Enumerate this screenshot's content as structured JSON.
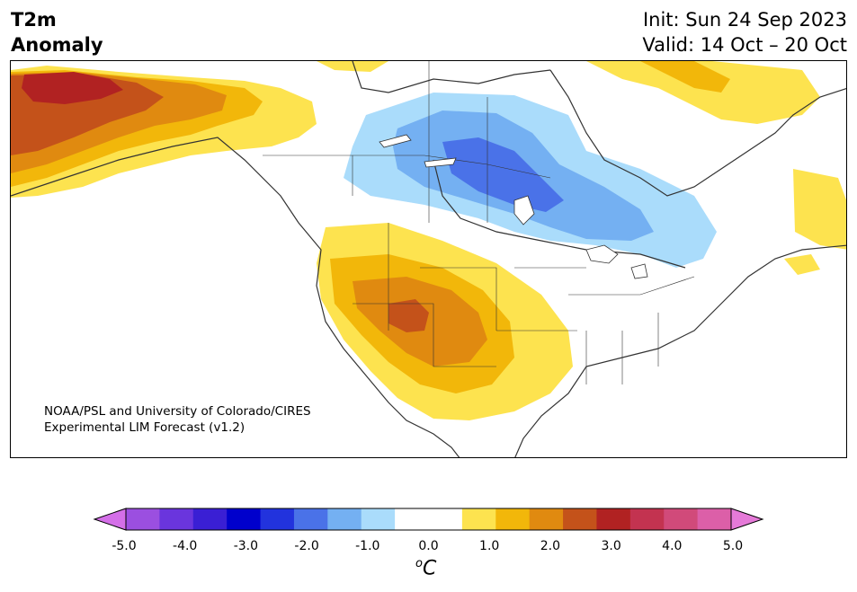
{
  "title": {
    "variable": "T2m",
    "type": "Anomaly",
    "init": "Init: Sun 24 Sep 2023",
    "valid": "Valid: 14 Oct – 20 Oct"
  },
  "credit": {
    "line1": "NOAA/PSL and University of Colorado/CIRES",
    "line2": "Experimental LIM Forecast (v1.2)"
  },
  "colorbar": {
    "unit_super": "o",
    "unit": "C",
    "ticks": [
      "-5.0",
      "-4.0",
      "-3.0",
      "-2.0",
      "-1.0",
      "0.0",
      "1.0",
      "2.0",
      "3.0",
      "4.0",
      "5.0"
    ],
    "bins": [
      "#d46fe8",
      "#9b4fe0",
      "#6a35dd",
      "#3a1fd4",
      "#0000cc",
      "#2233dd",
      "#4a72e8",
      "#74b0f2",
      "#aadcfb",
      "#ffffff",
      "#ffffff",
      "#fde34f",
      "#f2b70a",
      "#e08a10",
      "#c4521a",
      "#b12222",
      "#c33350",
      "#d14a7a",
      "#dc5fa8",
      "#e57ad8"
    ]
  },
  "colors": {
    "land_outline": "#333333",
    "positive_light": "#fde34f",
    "positive_mid": "#f2b70a",
    "positive_orange": "#e08a10",
    "positive_dark": "#c4521a",
    "positive_red": "#b12222",
    "negative_light": "#aadcfb",
    "negative_mid": "#74b0f2",
    "negative_blue": "#4a72e8"
  }
}
